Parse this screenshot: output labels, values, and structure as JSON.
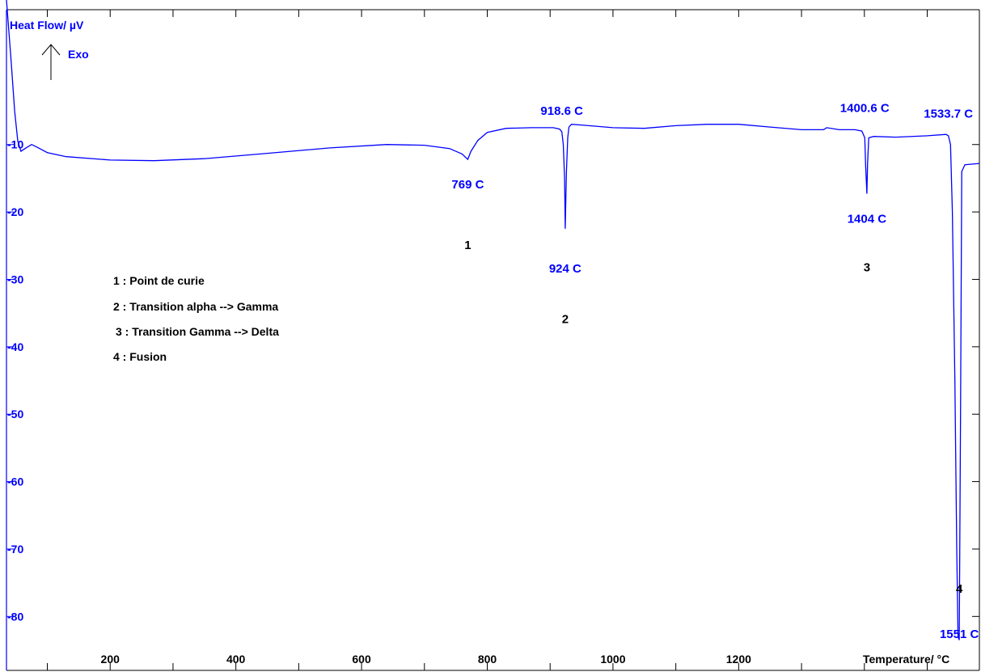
{
  "chart_data": {
    "type": "line",
    "ylabel": "Heat Flow/ µV",
    "exo_label": "Exo",
    "xlabel": "Temperature/ °C",
    "xlim": [
      35,
      1583
    ],
    "ylim": [
      -88,
      10
    ],
    "x_ticks": [
      200,
      400,
      600,
      800,
      1000,
      1200
    ],
    "y_ticks": [
      -10,
      -20,
      -30,
      -40,
      -50,
      -60,
      -70,
      -80
    ],
    "color": "#0000ff",
    "series": [
      {
        "x": [
          35,
          42,
          48,
          53,
          58,
          66,
          75,
          86,
          100,
          130,
          200,
          270,
          350,
          450,
          550,
          640,
          700,
          740,
          760,
          769,
          774,
          785,
          800,
          830,
          870,
          905,
          915,
          918.6,
          921,
          923,
          924,
          926,
          928,
          930,
          934,
          950,
          1000,
          1050,
          1100,
          1150,
          1200,
          1250,
          1300,
          1335,
          1340,
          1360,
          1385,
          1396,
          1400.6,
          1402,
          1404,
          1405,
          1407,
          1415,
          1450,
          1500,
          1530,
          1533.7,
          1537,
          1540,
          1544,
          1547,
          1549,
          1551,
          1553,
          1555,
          1560,
          1583
        ],
        "y": [
          12,
          3,
          -5,
          -9.5,
          -11,
          -10.5,
          -10,
          -10.5,
          -11.2,
          -11.8,
          -12.3,
          -12.4,
          -12.1,
          -11.3,
          -10.5,
          -10,
          -10.1,
          -10.6,
          -11.4,
          -12.2,
          -11,
          -9.4,
          -8.2,
          -7.6,
          -7.5,
          -7.5,
          -7.7,
          -8.1,
          -10,
          -15,
          -22.5,
          -14,
          -9,
          -7.4,
          -7,
          -7.1,
          -7.5,
          -7.6,
          -7.2,
          -7,
          -7,
          -7.4,
          -7.8,
          -7.8,
          -7.5,
          -7.8,
          -7.8,
          -8,
          -9,
          -13,
          -17.3,
          -13,
          -9,
          -8.8,
          -8.9,
          -8.7,
          -8.5,
          -8.7,
          -10,
          -20,
          -45,
          -70,
          -83,
          -83.5,
          -50,
          -14,
          -13,
          -12.8
        ]
      }
    ],
    "annotations": [
      {
        "text": "769 C",
        "x": 769,
        "y": -16.5
      },
      {
        "text": "918.6 C",
        "x": 918.6,
        "y": -5.6
      },
      {
        "text": "924 C",
        "x": 924,
        "y": -29
      },
      {
        "text": "1400.6 C",
        "x": 1400.6,
        "y": -5.2
      },
      {
        "text": "1404 C",
        "x": 1404,
        "y": -21.6
      },
      {
        "text": "1533.7 C",
        "x": 1533.7,
        "y": -6
      },
      {
        "text": "1551 C",
        "x": 1551,
        "y": -83.2
      }
    ],
    "step_labels": [
      {
        "text": "1",
        "x": 769,
        "y": -25.5
      },
      {
        "text": "2",
        "x": 924,
        "y": -36.5
      },
      {
        "text": "3",
        "x": 1404,
        "y": -28.8
      },
      {
        "text": "4",
        "x": 1551,
        "y": -76.5
      }
    ],
    "legend_placement": "center-left",
    "legend": [
      "1 : Point de curie",
      "2 : Transition alpha --> Gamma",
      "3 : Transition Gamma --> Delta",
      "4 : Fusion"
    ]
  }
}
